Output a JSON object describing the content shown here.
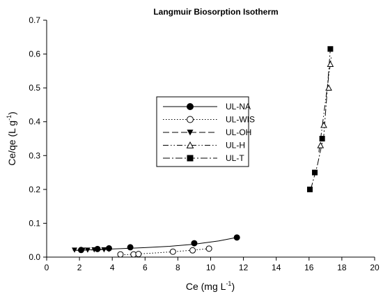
{
  "chart_data": {
    "type": "scatter",
    "title": "Langmuir Biosorption Isotherm",
    "xlabel": {
      "main": "Ce (mg L",
      "sup": "-1",
      "end": ")"
    },
    "ylabel": {
      "main": "Ce/qe (L g",
      "sup": "-1",
      "end": ")"
    },
    "xlim": [
      0,
      20
    ],
    "ylim": [
      0,
      0.7
    ],
    "x_ticks": [
      "0",
      "2",
      "4",
      "6",
      "8",
      "10",
      "12",
      "14",
      "16",
      "18",
      "20"
    ],
    "y_ticks": [
      "0.0",
      "0.1",
      "0.2",
      "0.3",
      "0.4",
      "0.5",
      "0.6",
      "0.7"
    ],
    "grid": false,
    "legend_position": "center",
    "series": [
      {
        "name": "UL-NA",
        "marker": "filled-circle",
        "line": "solid",
        "points": [
          [
            2.1,
            0.021
          ],
          [
            3.1,
            0.024
          ],
          [
            3.8,
            0.026
          ],
          [
            5.1,
            0.029
          ],
          [
            9.0,
            0.041
          ],
          [
            11.6,
            0.058
          ]
        ],
        "fit": [
          [
            1.8,
            0.02
          ],
          [
            3.0,
            0.022
          ],
          [
            4.5,
            0.025
          ],
          [
            6.0,
            0.028
          ],
          [
            7.5,
            0.032
          ],
          [
            9.0,
            0.038
          ],
          [
            10.5,
            0.048
          ],
          [
            11.6,
            0.058
          ]
        ]
      },
      {
        "name": "UL-WIS",
        "marker": "open-circle",
        "line": "dotted",
        "points": [
          [
            4.5,
            0.008
          ],
          [
            5.3,
            0.008
          ],
          [
            5.6,
            0.009
          ],
          [
            7.7,
            0.016
          ],
          [
            8.9,
            0.02
          ],
          [
            9.9,
            0.025
          ]
        ],
        "fit": [
          [
            4.4,
            0.006
          ],
          [
            5.5,
            0.009
          ],
          [
            6.5,
            0.012
          ],
          [
            7.5,
            0.015
          ],
          [
            8.5,
            0.019
          ],
          [
            9.9,
            0.025
          ]
        ]
      },
      {
        "name": "UL-OH",
        "marker": "filled-triangle-down",
        "line": "long-dash",
        "points": [
          [
            1.7,
            0.021
          ],
          [
            2.2,
            0.021
          ],
          [
            2.5,
            0.021
          ],
          [
            2.9,
            0.022
          ],
          [
            3.5,
            0.022
          ],
          [
            3.8,
            0.023
          ]
        ],
        "fit": [
          [
            1.6,
            0.02
          ],
          [
            2.7,
            0.021
          ],
          [
            3.9,
            0.023
          ]
        ]
      },
      {
        "name": "UL-H",
        "marker": "open-triangle-up",
        "line": "dash-dot-dot",
        "points": [
          [
            16.7,
            0.33
          ],
          [
            16.9,
            0.39
          ],
          [
            17.2,
            0.5
          ],
          [
            17.3,
            0.57
          ]
        ],
        "fit": [
          [
            16.6,
            0.31
          ],
          [
            17.35,
            0.59
          ]
        ]
      },
      {
        "name": "UL-T",
        "marker": "filled-square",
        "line": "dash-dot",
        "points": [
          [
            16.05,
            0.2
          ],
          [
            16.35,
            0.25
          ],
          [
            16.8,
            0.35
          ],
          [
            17.3,
            0.615
          ]
        ],
        "fit": [
          [
            16.1,
            0.2
          ],
          [
            16.5,
            0.27
          ],
          [
            16.9,
            0.36
          ],
          [
            17.3,
            0.615
          ]
        ]
      }
    ]
  }
}
